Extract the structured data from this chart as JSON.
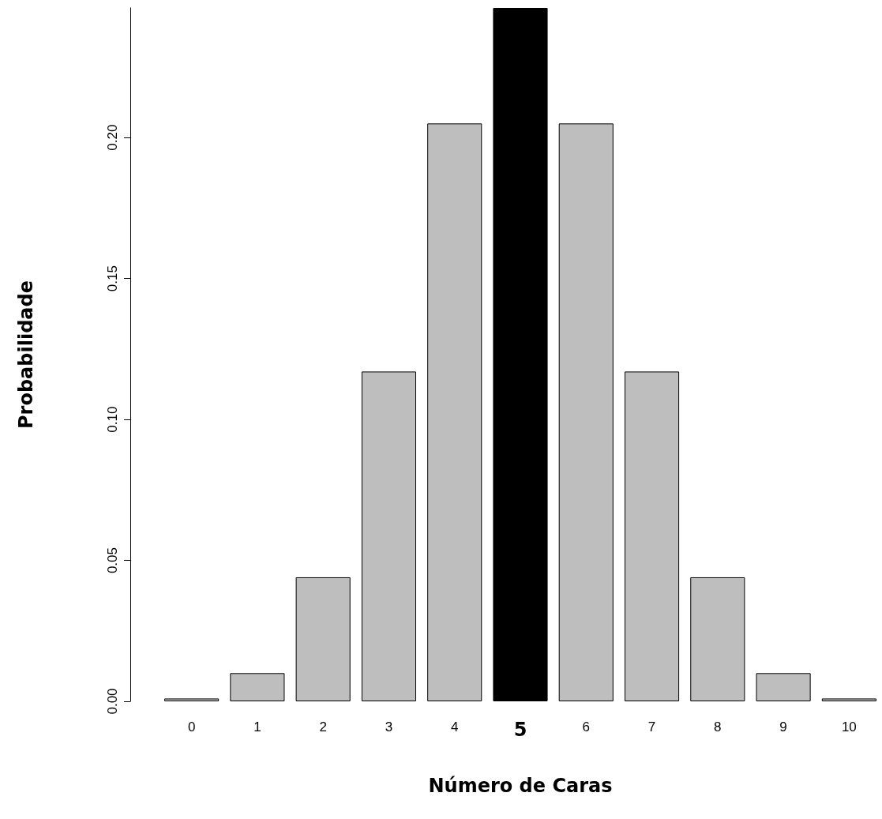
{
  "chart_data": {
    "type": "bar",
    "xlabel": "Número de Caras",
    "ylabel": "Probabilidade",
    "categories": [
      "0",
      "1",
      "2",
      "3",
      "4",
      "5",
      "6",
      "7",
      "8",
      "9",
      "10"
    ],
    "values": [
      0.001,
      0.01,
      0.044,
      0.117,
      0.205,
      0.246,
      0.205,
      0.117,
      0.044,
      0.01,
      0.001
    ],
    "colors": [
      "#bebebe",
      "#bebebe",
      "#bebebe",
      "#bebebe",
      "#bebebe",
      "#000000",
      "#bebebe",
      "#bebebe",
      "#bebebe",
      "#bebebe",
      "#bebebe"
    ],
    "ylim": [
      0,
      0.246
    ],
    "yticks": [
      {
        "value": 0,
        "label": "0.00"
      },
      {
        "value": 0.05,
        "label": "0.05"
      },
      {
        "value": 0.1,
        "label": "0.10"
      },
      {
        "value": 0.15,
        "label": "0.15"
      },
      {
        "value": 0.2,
        "label": "0.20"
      }
    ],
    "grid": false
  }
}
